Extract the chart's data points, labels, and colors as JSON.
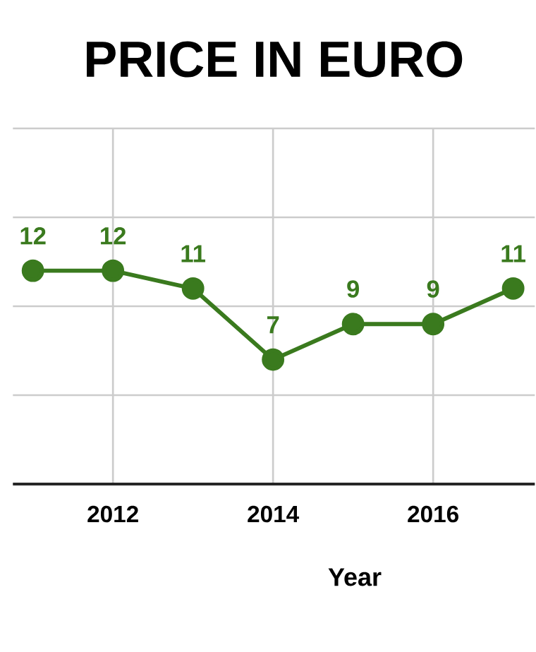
{
  "chart_data": {
    "type": "line",
    "title": "PRICE IN EURO",
    "xlabel": "Year",
    "x": [
      2011,
      2012,
      2013,
      2014,
      2015,
      2016,
      2017
    ],
    "values": [
      12,
      12,
      11,
      7,
      9,
      9,
      11
    ],
    "color": "#3a7a1e",
    "marker": "circle",
    "data_labels": true,
    "grid": true,
    "xlim": [
      2010.75,
      2017.27
    ],
    "xticks": [
      2012,
      2014,
      2016
    ],
    "ylim": [
      0,
      20
    ],
    "tick_labels": "x"
  }
}
